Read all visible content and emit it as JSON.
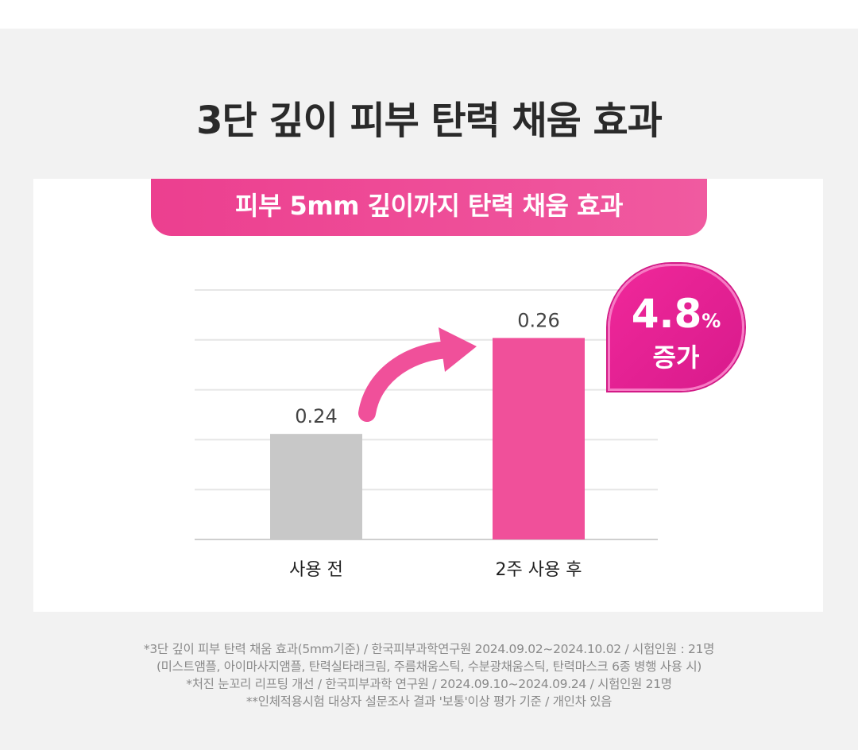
{
  "title": "3단 깊이 피부 탄력 채움 효과",
  "subtitle": "피부 5mm 깊이까지 탄력 채움 효과",
  "badge": {
    "value": "4.8",
    "unit": "%",
    "label": "증가"
  },
  "colors": {
    "before": "#c8c8c8",
    "after": "#f0509a",
    "accent": "#ec3f8f"
  },
  "chart_data": {
    "type": "bar",
    "categories": [
      "사용 전",
      "2주 사용 후"
    ],
    "values": [
      0.24,
      0.26
    ],
    "data_labels": [
      "0.24",
      "0.26"
    ],
    "ylim": [
      0.218,
      0.27
    ],
    "grid": true,
    "title": "피부 5mm 깊이까지 탄력 채움 효과"
  },
  "notes": [
    "*3단 깊이 피부 탄력 채움 효과(5mm기준) / 한국피부과학연구원  2024.09.02~2024.10.02 / 시험인원 : 21명",
    "(미스트앰플, 아이마사지앰플, 탄력실타래크림, 주름채움스틱, 수분광채움스틱, 탄력마스크 6종 병행 사용 시)",
    "*처진 눈꼬리 리프팅 개선 / 한국피부과학 연구원 / 2024.09.10~2024.09.24 / 시험인원 21명",
    "**인체적용시험 대상자 설문조사 결과 '보통'이상 평가 기준 / 개인차 있음"
  ]
}
